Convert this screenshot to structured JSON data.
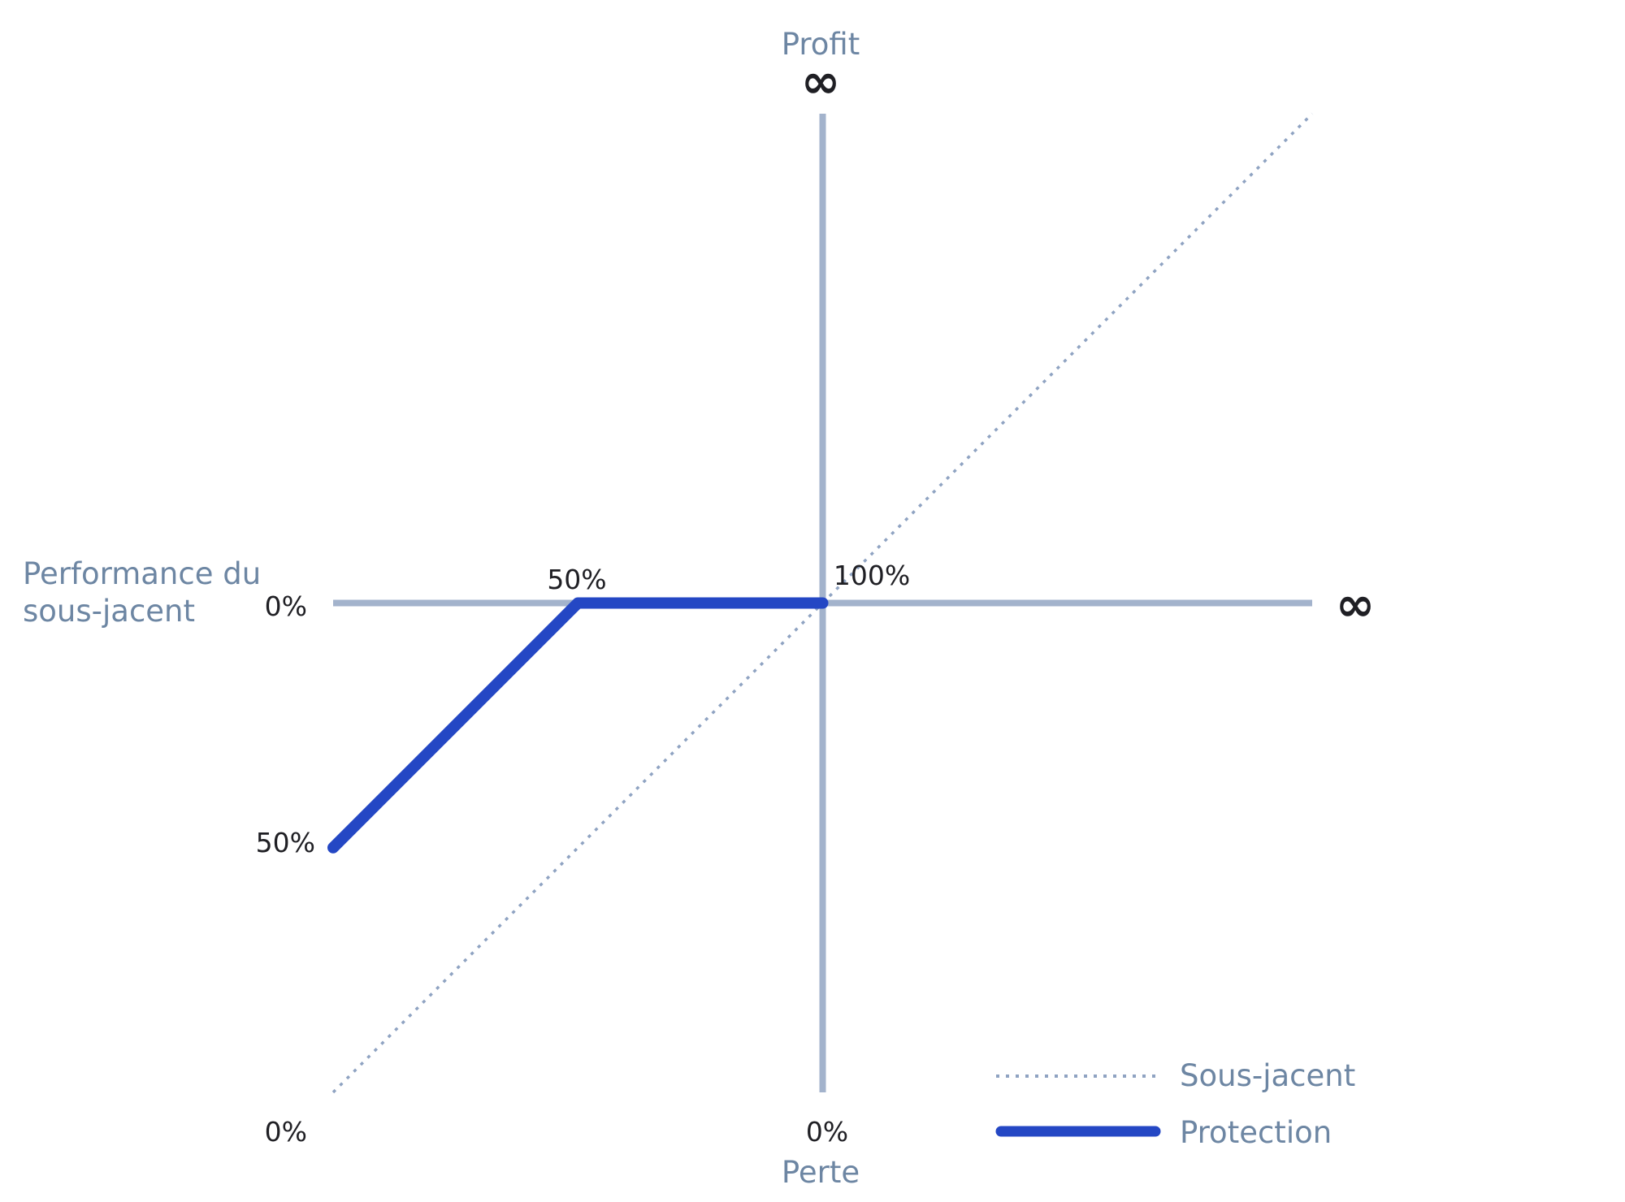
{
  "chart_data": {
    "type": "line",
    "title": "",
    "xlabel": "Performance du sous-jacent",
    "ylabel_top": "Profit",
    "ylabel_bottom": "Perte",
    "x_axis_end_label": "∞",
    "y_axis_end_label": "∞",
    "xlim": [
      0,
      200
    ],
    "ylim": [
      0,
      200
    ],
    "origin": [
      100,
      100
    ],
    "tick_labels": {
      "x_origin": "0%",
      "y_origin_left": "0%",
      "x_at_zero_bottom": "0%",
      "x_at_100_bottom": "0%",
      "y_at_50_left": "50%",
      "point_50": "50%",
      "point_100": "100%"
    },
    "series": [
      {
        "name": "Sous-jacent",
        "style": "dotted",
        "color": "#8fa3c2",
        "x": [
          0,
          200
        ],
        "y": [
          0,
          200
        ]
      },
      {
        "name": "Protection",
        "style": "solid",
        "color": "#2447c4",
        "x": [
          0,
          50,
          100
        ],
        "y": [
          50,
          100,
          100
        ]
      }
    ],
    "grid": false,
    "legend_position": "bottom-right",
    "axis_color": "#a3b3cc"
  }
}
